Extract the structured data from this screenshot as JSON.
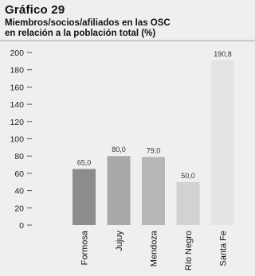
{
  "chart_data": {
    "type": "bar",
    "title": "Gráfico 29",
    "subtitle_lines": [
      "Miembros/socios/afiliados en las OSC",
      "en relación a la población total (%)"
    ],
    "categories": [
      "Formosa",
      "Jujuy",
      "Mendoza",
      "Río Negro",
      "Santa Fe"
    ],
    "values": [
      65.0,
      80.0,
      79.0,
      50.0,
      190.8
    ],
    "value_labels": [
      "65,0",
      "80,0",
      "79,0",
      "50,0",
      "190,8"
    ],
    "colors": [
      "#8c8c8c",
      "#a9a9a9",
      "#b7b7b7",
      "#d2d2d2",
      "#e4e4e4"
    ],
    "yticks": [
      "0",
      "20",
      "40",
      "60",
      "80",
      "100",
      "120",
      "140",
      "160",
      "180",
      "200"
    ],
    "ylim": [
      0,
      200
    ],
    "xlabel": "",
    "ylabel": "",
    "grid": false,
    "legend": "none"
  }
}
